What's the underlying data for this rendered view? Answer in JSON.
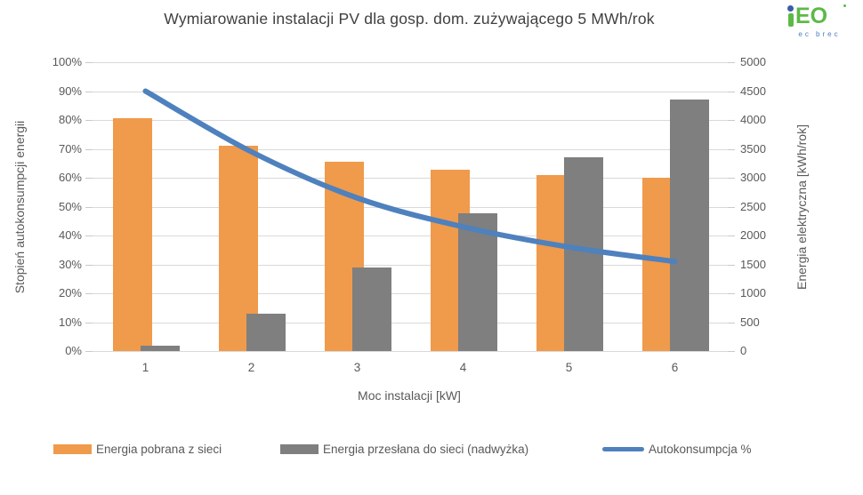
{
  "title": "Wymiarowanie instalacji PV dla gosp. dom. zużywającego 5 MWh/rok",
  "logo": {
    "brand": "iEO",
    "sub": "ec brec",
    "green": "#5CB947",
    "blue": "#3A5DA9"
  },
  "chart_data": {
    "type": "combo-bar-line",
    "categories": [
      "1",
      "2",
      "3",
      "4",
      "5",
      "6"
    ],
    "xlabel": "Moc instalacji [kW]",
    "left_axis": {
      "label": "Stopień autokonsumpcji energii",
      "ticks": [
        "0%",
        "10%",
        "20%",
        "30%",
        "40%",
        "50%",
        "60%",
        "70%",
        "80%",
        "90%",
        "100%"
      ],
      "range": [
        0,
        100
      ]
    },
    "right_axis": {
      "label": "Energia elektryczna [kWh/rok]",
      "ticks": [
        "0",
        "500",
        "1000",
        "1500",
        "2000",
        "2500",
        "3000",
        "3500",
        "4000",
        "4500",
        "5000"
      ],
      "range": [
        0,
        5000
      ]
    },
    "series": [
      {
        "name": "Energia pobrana z sieci",
        "type": "bar",
        "axis": "right",
        "color": "#F09A4B",
        "values": [
          4030,
          3550,
          3280,
          3140,
          3050,
          3000
        ]
      },
      {
        "name": "Energia przesłana do sieci (nadwyżka)",
        "type": "bar",
        "axis": "right",
        "color": "#7F7F7F",
        "values": [
          100,
          640,
          1450,
          2380,
          3360,
          4350
        ]
      },
      {
        "name": "Autokonsumpcja %",
        "type": "line",
        "axis": "left",
        "color": "#4E81BD",
        "values": [
          90,
          69,
          53,
          43,
          36,
          31
        ]
      }
    ],
    "grid": true,
    "legend_position": "bottom",
    "colors": {
      "gridline": "#D9D9D9",
      "tick": "#C9C9C9",
      "text": "#595959",
      "title": "#404040"
    }
  }
}
